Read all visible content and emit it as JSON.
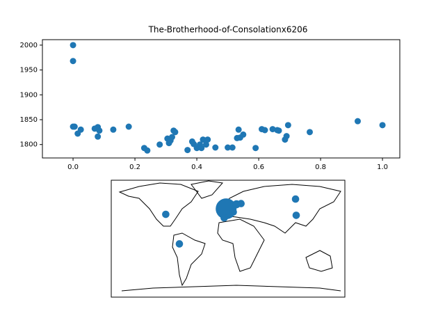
{
  "chart_data": [
    {
      "type": "scatter",
      "title": "The-Brotherhood-of-Consolationx6206",
      "color": "#1f77b4",
      "x": [
        0,
        0,
        0,
        0.005,
        0.015,
        0.025,
        0.07,
        0.08,
        0.085,
        0.08,
        0.13,
        0.18,
        0.23,
        0.24,
        0.28,
        0.305,
        0.31,
        0.315,
        0.32,
        0.325,
        0.33,
        0.37,
        0.385,
        0.39,
        0.4,
        0.41,
        0.415,
        0.42,
        0.43,
        0.435,
        0.46,
        0.5,
        0.515,
        0.53,
        0.535,
        0.54,
        0.55,
        0.59,
        0.61,
        0.62,
        0.645,
        0.66,
        0.665,
        0.685,
        0.69,
        0.695,
        0.765,
        0.92,
        1.0
      ],
      "values": [
        2000,
        1968,
        1836,
        1836,
        1822,
        1830,
        1832,
        1835,
        1828,
        1816,
        1830,
        1836,
        1793,
        1788,
        1800,
        1812,
        1803,
        1808,
        1815,
        1828,
        1825,
        1789,
        1806,
        1801,
        1793,
        1800,
        1793,
        1810,
        1800,
        1810,
        1794,
        1794,
        1794,
        1813,
        1830,
        1814,
        1820,
        1793,
        1831,
        1829,
        1831,
        1829,
        1828,
        1810,
        1817,
        1839,
        1825,
        1847,
        1839
      ],
      "xlim": [
        -0.099,
        1.056
      ],
      "ylim": [
        1773,
        2011
      ],
      "xticks": [
        {
          "value": 0,
          "label": "0.0"
        },
        {
          "value": 0.2,
          "label": "0.2"
        },
        {
          "value": 0.4,
          "label": "0.4"
        },
        {
          "value": 0.6,
          "label": "0.6"
        },
        {
          "value": 0.8,
          "label": "0.8"
        },
        {
          "value": 1,
          "label": "1.0"
        }
      ],
      "yticks": [
        1800,
        1850,
        1900,
        1950,
        2000
      ]
    },
    {
      "type": "map",
      "color": "#1f77b4",
      "x": [
        -96,
        -75,
        -3,
        13,
        8,
        -6,
        20,
        104,
        105
      ],
      "values": [
        37.5,
        -8,
        46,
        53,
        41,
        32,
        54,
        61,
        36
      ],
      "sizes": [
        50,
        50,
        400,
        60,
        50,
        50,
        50,
        50,
        50
      ],
      "xlim": [
        -180,
        180
      ],
      "ylim": [
        -90,
        90
      ]
    }
  ]
}
